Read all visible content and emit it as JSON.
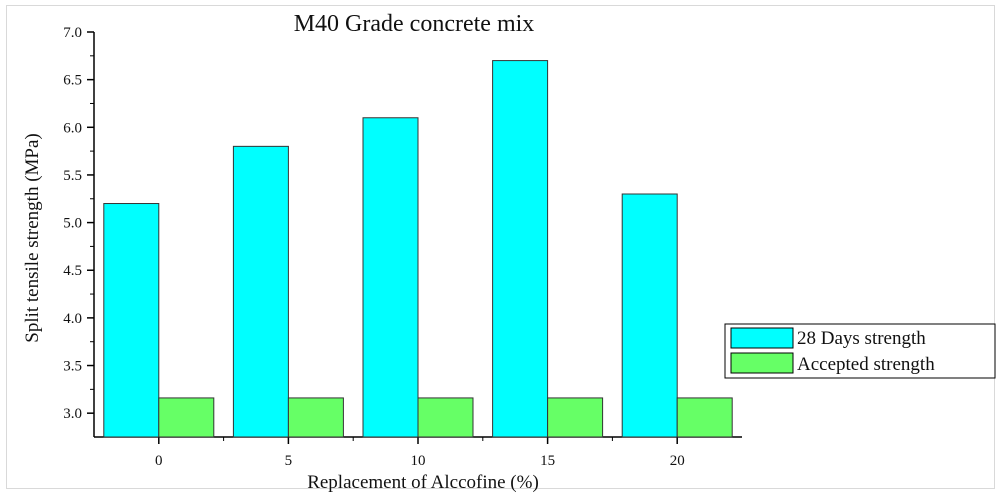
{
  "chart_data": {
    "type": "bar",
    "title": "M40 Grade concrete mix",
    "xlabel": "Replacement of Alccofine (%)",
    "ylabel": "Split tensile strength (MPa)",
    "categories": [
      "0",
      "5",
      "10",
      "15",
      "20"
    ],
    "series": [
      {
        "name": "28 Days strength",
        "values": [
          5.2,
          5.8,
          6.1,
          6.7,
          5.3
        ],
        "color": "#00ffff"
      },
      {
        "name": "Accepted strength",
        "values": [
          3.16,
          3.16,
          3.16,
          3.16,
          3.16
        ],
        "color": "#66ff66"
      }
    ],
    "ylim": [
      2.75,
      7.0
    ],
    "yticks": [
      "3.0",
      "3.5",
      "4.0",
      "4.5",
      "5.0",
      "5.5",
      "6.0",
      "6.5",
      "7.0"
    ],
    "grid": false,
    "legend_position": "right"
  }
}
